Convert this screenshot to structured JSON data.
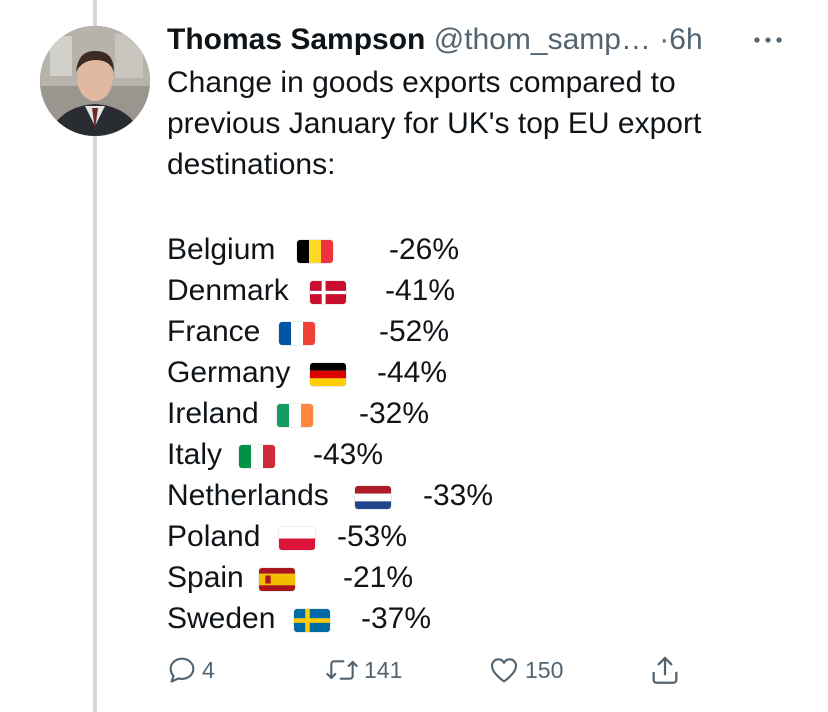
{
  "tweet": {
    "author_name": "Thomas Sampson",
    "handle": "@thom_samp…",
    "separator": "·",
    "time": "6h",
    "more_icon": "more-horizontal-icon",
    "text_lines": [
      "Change in goods exports compared to",
      "previous January for UK's top EU export",
      "destinations:"
    ]
  },
  "exports": [
    {
      "country": "Belgium",
      "change": "-26%",
      "flag": "belgium-flag-icon"
    },
    {
      "country": "Denmark",
      "change": "-41%",
      "flag": "denmark-flag-icon"
    },
    {
      "country": "France",
      "change": "-52%",
      "flag": "france-flag-icon"
    },
    {
      "country": "Germany",
      "change": "-44%",
      "flag": "germany-flag-icon"
    },
    {
      "country": "Ireland",
      "change": "-32%",
      "flag": "ireland-flag-icon"
    },
    {
      "country": "Italy",
      "change": "-43%",
      "flag": "italy-flag-icon"
    },
    {
      "country": "Netherlands",
      "change": "-33%",
      "flag": "netherlands-flag-icon"
    },
    {
      "country": "Poland",
      "change": "-53%",
      "flag": "poland-flag-icon"
    },
    {
      "country": "Spain",
      "change": "-21%",
      "flag": "spain-flag-icon"
    },
    {
      "country": "Sweden",
      "change": "-37%",
      "flag": "sweden-flag-icon"
    }
  ],
  "actions": {
    "reply_count": "4",
    "retweet_count": "141",
    "like_count": "150",
    "reply_icon": "reply-icon",
    "retweet_icon": "retweet-icon",
    "like_icon": "heart-icon",
    "share_icon": "share-icon"
  },
  "colors": {
    "text": "#0f1419",
    "secondary": "#536471",
    "thread_line": "#cfd9de"
  }
}
